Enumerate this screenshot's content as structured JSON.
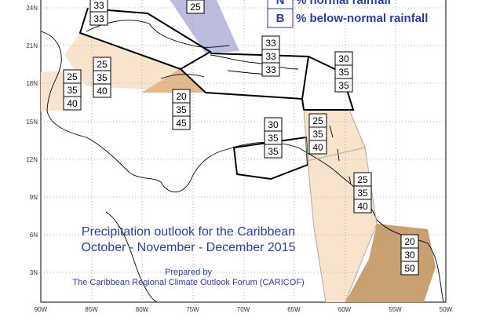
{
  "map": {
    "legend": [
      {
        "key": "N",
        "label": "% normal rainfall"
      },
      {
        "key": "B",
        "label": "% below-normal rainfall"
      }
    ],
    "lat_labels": [
      "24N",
      "21N",
      "18N",
      "15N",
      "12N",
      "9N",
      "6N",
      "3N"
    ],
    "lon_labels": [
      "90W",
      "85W",
      "80W",
      "75W",
      "70W",
      "65W",
      "60W",
      "55W",
      "50W"
    ],
    "boxes": [
      [
        "33",
        "33"
      ],
      [
        "25"
      ],
      [
        "25",
        "35",
        "40"
      ],
      [
        "25",
        "35",
        "40"
      ],
      [
        "20",
        "35",
        "45"
      ],
      [
        "33",
        "33",
        "33"
      ],
      [
        "30",
        "35",
        "35"
      ],
      [
        "30",
        "35",
        "35"
      ],
      [
        "25",
        "35",
        "40"
      ],
      [
        "25",
        "35",
        "40"
      ],
      [
        "20",
        "30",
        "50"
      ]
    ],
    "title": "Precipitation outlook for the Caribbean",
    "subtitle": "October - November - December 2015",
    "prepared_by": "Prepared by",
    "forum": "The Caribbean Regional Climate Outlook Forum (CARICOF)"
  }
}
